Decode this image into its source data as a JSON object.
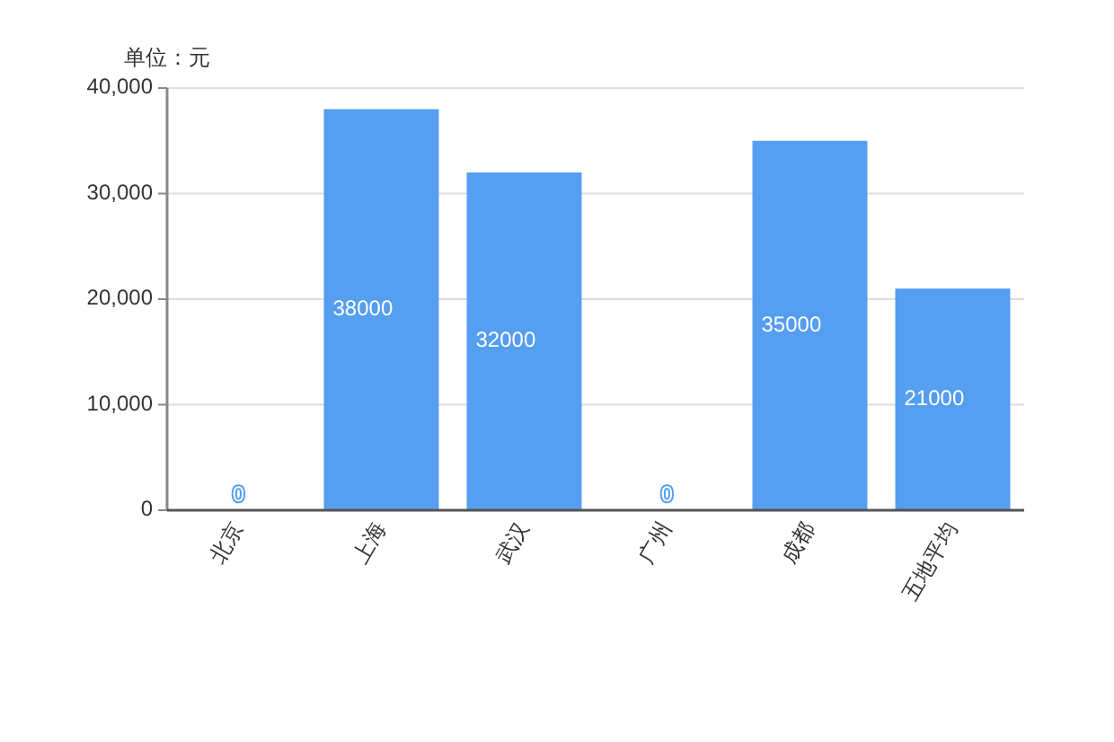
{
  "chart_data": {
    "type": "bar",
    "ylabel": "单位：元",
    "categories": [
      "北京",
      "上海",
      "武汉",
      "广州",
      "成都",
      "五地平均"
    ],
    "values": [
      0,
      38000,
      32000,
      0,
      35000,
      21000
    ],
    "color": "#559ef0",
    "ylim": [
      0,
      40000
    ],
    "yticks": [
      0,
      {
        "value": 10000,
        "label": "10,000"
      },
      {
        "value": 20000,
        "label": "20,000"
      },
      {
        "value": 30000,
        "label": "30,000"
      },
      {
        "value": 40000,
        "label": "40,000"
      }
    ],
    "grid": "y",
    "data_labels": true
  }
}
